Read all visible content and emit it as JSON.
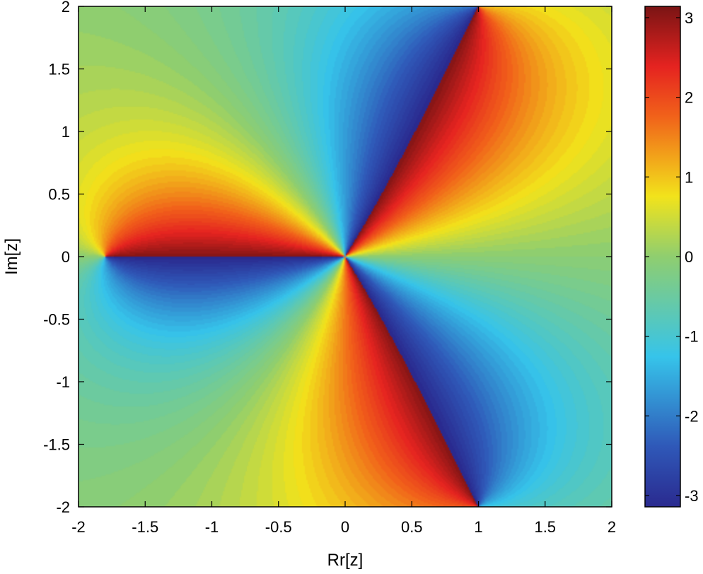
{
  "chart_data": {
    "type": "heatmap",
    "title": "",
    "xlabel": "Rr[z]",
    "ylabel": "Im[z]",
    "xlim": [
      -2,
      2
    ],
    "ylim": [
      -2,
      2
    ],
    "x_ticks": [
      "-2",
      "-1.5",
      "-1",
      "-0.5",
      "0",
      "0.5",
      "1",
      "1.5",
      "2"
    ],
    "y_ticks": [
      "2",
      "1.5",
      "1",
      "0.5",
      "0",
      "-0.5",
      "-1",
      "-1.5",
      "-2"
    ],
    "colorbar": {
      "range": [
        -3.14159,
        3.14159
      ],
      "ticks": [
        "3",
        "2",
        "1",
        "0",
        "-1",
        "-2",
        "-3"
      ],
      "colormap": "jet"
    },
    "field": {
      "description_of_value": "phase angle (argument) of complex function over z-plane",
      "zeros": [
        [
          0,
          0
        ],
        [
          0.0,
          0.0
        ],
        [
          0.0,
          0.0
        ]
      ],
      "poles": [
        [
          -1.8,
          0
        ],
        [
          1.0,
          2.0
        ],
        [
          1.0,
          -2.0
        ]
      ],
      "grid": false,
      "colormap_colors": [
        "#00007f",
        "#0000ff",
        "#00ffff",
        "#ffff00",
        "#ff0000",
        "#7f0000"
      ]
    }
  }
}
